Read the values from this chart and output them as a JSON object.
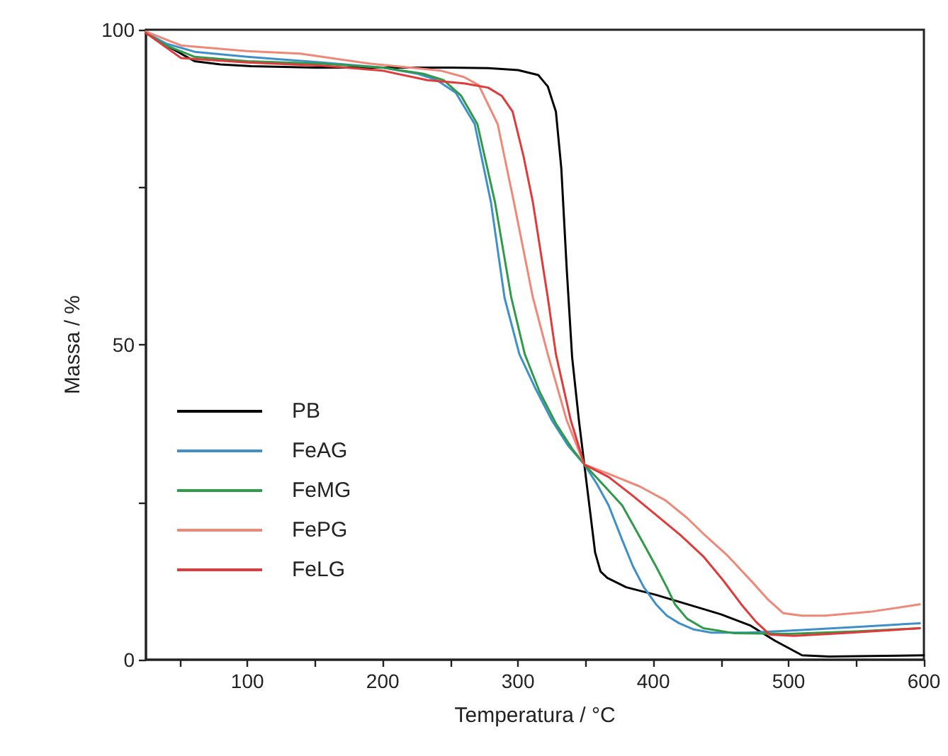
{
  "chart_data": {
    "type": "line",
    "xlabel": "Temperatura / °C",
    "ylabel": "Massa / %",
    "xlim": [
      25,
      600
    ],
    "ylim": [
      0,
      100
    ],
    "xticks": [
      {
        "value": 50,
        "label": null
      },
      100,
      {
        "value": 150,
        "label": null
      },
      200,
      {
        "value": 250,
        "label": null
      },
      300,
      {
        "value": 350,
        "label": null
      },
      400,
      {
        "value": 450,
        "label": null
      },
      500,
      {
        "value": 550,
        "label": null
      },
      600
    ],
    "yticks": [
      0,
      {
        "value": 25,
        "label": null
      },
      50,
      {
        "value": 75,
        "label": null
      },
      100
    ],
    "grid": false,
    "legend": "left",
    "marker": "none",
    "line_style": "solid",
    "series": [
      {
        "name": "PB",
        "color": "#000000",
        "x": [
          25,
          40,
          61,
          80,
          103,
          150,
          200,
          250,
          278,
          300,
          315,
          322,
          328,
          332,
          336,
          340,
          345,
          349,
          353,
          357,
          361,
          366,
          380,
          402,
          430,
          450,
          472,
          490,
          510,
          530,
          560,
          600
        ],
        "values": [
          99.5,
          97.5,
          95,
          94.5,
          94.2,
          94,
          94,
          94,
          93.9,
          93.6,
          92.8,
          91,
          87,
          78,
          62,
          48,
          38,
          31,
          24,
          17,
          14,
          13,
          11.5,
          10.3,
          8.5,
          7.2,
          5.4,
          3,
          0.7,
          0.5,
          0.6,
          0.7
        ]
      },
      {
        "name": "FeAG",
        "color": "#3f8fc8",
        "x": [
          25,
          40,
          61,
          100,
          155,
          200,
          226,
          240,
          254,
          268,
          280,
          290,
          301,
          313,
          325,
          337,
          349,
          358,
          367,
          377,
          385,
          393,
          402,
          410,
          419,
          430,
          443,
          470,
          500,
          550,
          597
        ],
        "values": [
          99.5,
          97.8,
          96.5,
          95.7,
          94.8,
          94,
          93,
          92,
          90,
          85,
          72.6,
          57.5,
          48.5,
          43,
          38,
          34,
          31,
          28,
          24.5,
          19,
          14.8,
          11.5,
          8.8,
          7,
          5.8,
          4.8,
          4.3,
          4.3,
          4.6,
          5.2,
          5.8
        ]
      },
      {
        "name": "FeMG",
        "color": "#2e9a4a",
        "x": [
          25,
          40,
          61,
          100,
          155,
          200,
          230,
          245,
          258,
          270,
          283,
          295,
          305,
          316,
          328,
          340,
          349,
          362,
          377,
          390,
          402,
          410,
          416,
          425,
          437,
          460,
          500,
          550,
          597
        ],
        "values": [
          99.5,
          97.5,
          95.7,
          95,
          94.6,
          94,
          93,
          92,
          89.5,
          85,
          72.6,
          57.5,
          48.5,
          42.5,
          37.5,
          33.5,
          31,
          28,
          24.5,
          19.5,
          14.8,
          11.5,
          8.8,
          6.5,
          5,
          4.2,
          4.1,
          4.5,
          5
        ]
      },
      {
        "name": "FePG",
        "color": "#f08878",
        "x": [
          25,
          51,
          100,
          139,
          191,
          243,
          260,
          271,
          285,
          297,
          311,
          322,
          336,
          349,
          367,
          390,
          409,
          425,
          437,
          455,
          472,
          485,
          496,
          510,
          527,
          560,
          597
        ],
        "values": [
          99.7,
          97.5,
          96.6,
          96.2,
          94.6,
          93.5,
          92.5,
          91.2,
          85,
          72.6,
          57.5,
          48.5,
          38,
          31,
          29.5,
          27.5,
          25.3,
          22.5,
          20,
          16.5,
          12.6,
          9.5,
          7.4,
          7,
          7,
          7.6,
          8.8
        ]
      },
      {
        "name": "FeLG",
        "color": "#e03a3a",
        "x": [
          25,
          51,
          100,
          155,
          200,
          233,
          260,
          278,
          288,
          296,
          304,
          311,
          322,
          328,
          339,
          349,
          367,
          385,
          402,
          420,
          437,
          452,
          465,
          476,
          486,
          504,
          540,
          597
        ],
        "values": [
          99.5,
          95.5,
          94.8,
          94.3,
          93.5,
          92,
          91.5,
          90.8,
          89.5,
          87,
          80,
          72.6,
          57.5,
          48.5,
          38,
          31,
          29,
          26,
          23,
          19.8,
          16.4,
          12.5,
          8.8,
          6,
          4,
          3.8,
          4.2,
          5
        ]
      }
    ]
  }
}
